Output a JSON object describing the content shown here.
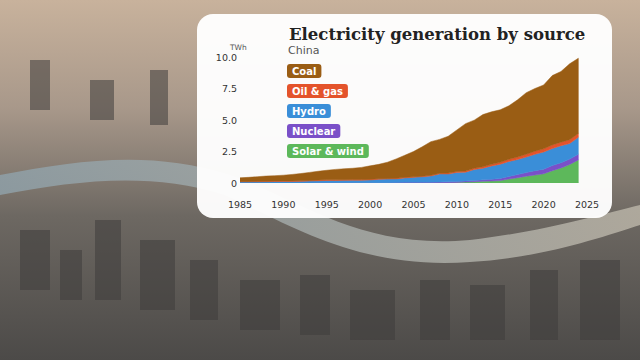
{
  "chart_data": {
    "type": "area",
    "title": "Electricity generation by source",
    "subtitle": "China",
    "y_label": "TWh",
    "x": [
      1985,
      1986,
      1987,
      1988,
      1989,
      1990,
      1991,
      1992,
      1993,
      1994,
      1995,
      1996,
      1997,
      1998,
      1999,
      2000,
      2001,
      2002,
      2003,
      2004,
      2005,
      2006,
      2007,
      2008,
      2009,
      2010,
      2011,
      2012,
      2013,
      2014,
      2015,
      2016,
      2017,
      2018,
      2019,
      2020,
      2021,
      2022,
      2023,
      2024
    ],
    "series": [
      {
        "name": "Coal",
        "color": "#9a5d14",
        "values": [
          0.288,
          0.325,
          0.367,
          0.406,
          0.425,
          0.453,
          0.513,
          0.575,
          0.64,
          0.701,
          0.756,
          0.829,
          0.871,
          0.902,
          0.971,
          1.071,
          1.136,
          1.287,
          1.533,
          1.746,
          2.005,
          2.325,
          2.666,
          2.682,
          2.926,
          3.289,
          3.761,
          3.821,
          4.14,
          4.17,
          4.17,
          4.25,
          4.54,
          4.89,
          4.98,
          5.07,
          5.51,
          5.61,
          6.03,
          5.97
        ]
      },
      {
        "name": "Oil & gas",
        "color": "#e4532b",
        "values": [
          0.03,
          0.031,
          0.033,
          0.035,
          0.037,
          0.04,
          0.042,
          0.044,
          0.046,
          0.048,
          0.05,
          0.05,
          0.05,
          0.05,
          0.05,
          0.05,
          0.05,
          0.05,
          0.05,
          0.05,
          0.045,
          0.05,
          0.06,
          0.06,
          0.07,
          0.08,
          0.09,
          0.1,
          0.12,
          0.13,
          0.15,
          0.17,
          0.2,
          0.22,
          0.24,
          0.25,
          0.29,
          0.28,
          0.3,
          0.3
        ]
      },
      {
        "name": "Hydro",
        "color": "#3a8ed8",
        "values": [
          0.092,
          0.094,
          0.1,
          0.109,
          0.118,
          0.127,
          0.125,
          0.131,
          0.152,
          0.167,
          0.191,
          0.187,
          0.195,
          0.204,
          0.204,
          0.222,
          0.277,
          0.288,
          0.284,
          0.354,
          0.397,
          0.436,
          0.486,
          0.637,
          0.616,
          0.722,
          0.698,
          0.872,
          0.92,
          1.06,
          1.13,
          1.19,
          1.19,
          1.23,
          1.3,
          1.36,
          1.34,
          1.35,
          1.23,
          1.35
        ]
      },
      {
        "name": "Nuclear",
        "color": "#7a50c8",
        "values": [
          0,
          0,
          0,
          0,
          0,
          0,
          0,
          0,
          0.002,
          0.014,
          0.013,
          0.014,
          0.014,
          0.014,
          0.015,
          0.017,
          0.017,
          0.025,
          0.043,
          0.05,
          0.053,
          0.055,
          0.062,
          0.068,
          0.07,
          0.074,
          0.086,
          0.097,
          0.11,
          0.13,
          0.17,
          0.21,
          0.25,
          0.29,
          0.35,
          0.37,
          0.41,
          0.42,
          0.43,
          0.45
        ]
      },
      {
        "name": "Solar & wind",
        "color": "#5db85b",
        "values": [
          0,
          0,
          0,
          0,
          0,
          0,
          0,
          0,
          0,
          0,
          0,
          0,
          0,
          0,
          0,
          0,
          0,
          0,
          0,
          0,
          0,
          0.004,
          0.006,
          0.013,
          0.028,
          0.045,
          0.075,
          0.1,
          0.14,
          0.16,
          0.19,
          0.31,
          0.42,
          0.54,
          0.63,
          0.73,
          0.98,
          1.19,
          1.47,
          1.83
        ]
      }
    ],
    "xlim": [
      1985,
      2025
    ],
    "xticks": [
      1985,
      1990,
      1995,
      2000,
      2005,
      2010,
      2015,
      2020,
      2025
    ],
    "ylim": [
      0,
      10
    ],
    "yticks": [
      0,
      2.5,
      {
        "value": 5,
        "label": "5.0"
      },
      7.5,
      {
        "value": 10,
        "label": "10.0"
      }
    ],
    "stacked": true,
    "legend": "top-left",
    "grid": false
  }
}
